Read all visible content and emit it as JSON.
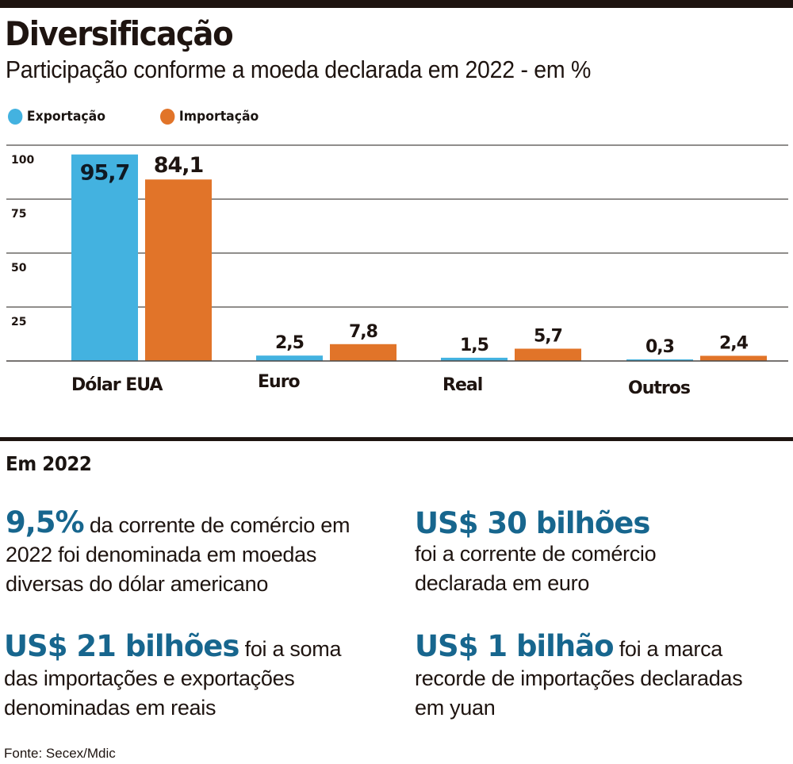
{
  "header": {
    "title": "Diversificação",
    "subtitle": "Participação conforme a moeda declarada em 2022 - em %"
  },
  "legend": [
    {
      "label": "Exportação",
      "color": "#43b2e0"
    },
    {
      "label": "Importação",
      "color": "#e17429"
    }
  ],
  "chart_data": {
    "type": "bar",
    "title": "Diversificação",
    "subtitle": "Participação conforme a moeda declarada em 2022 - em %",
    "xlabel": "",
    "ylabel": "%",
    "ylim": [
      0,
      100
    ],
    "yticks": [
      25,
      50,
      75,
      100
    ],
    "ytick_labels": [
      "25",
      "50",
      "75",
      "100"
    ],
    "grid": true,
    "legend_position": "top-left",
    "categories": [
      "Dólar EUA",
      "Euro",
      "Real",
      "Outros"
    ],
    "series": [
      {
        "name": "Exportação",
        "color": "#43b2e0",
        "values": [
          95.7,
          2.5,
          1.5,
          0.3
        ],
        "labels": [
          "95,7",
          "2,5",
          "1,5",
          "0,3"
        ]
      },
      {
        "name": "Importação",
        "color": "#e17429",
        "values": [
          84.1,
          7.8,
          5.7,
          2.4
        ],
        "labels": [
          "84,1",
          "7,8",
          "5,7",
          "2,4"
        ]
      }
    ]
  },
  "section": {
    "title": "Em 2022",
    "facts": [
      {
        "highlight": "9,5%",
        "text": " da corrente  de comércio em 2022 foi denominada em moedas diversas do dólar americano"
      },
      {
        "highlight": "US$ 30 bilhões",
        "text": "foi a corrente de comércio declarada em euro"
      },
      {
        "highlight": "US$ 21 bilhões",
        "text": " foi a soma das importações e exportações denominadas em reais"
      },
      {
        "highlight": "US$ 1 bilhão",
        "text": "  foi a marca recorde de importações declaradas em yuan"
      }
    ]
  },
  "source": "Fonte: Secex/Mdic",
  "colors": {
    "accent": "#17668e",
    "dark": "#1e1410",
    "export": "#43b2e0",
    "import": "#e17429"
  }
}
